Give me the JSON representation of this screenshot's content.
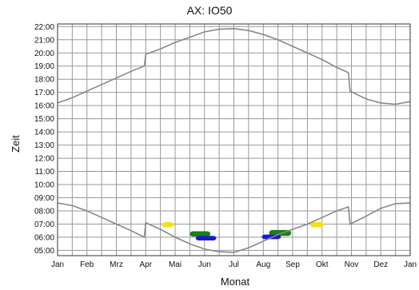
{
  "chart_data": {
    "type": "line",
    "title": "AX: IO50",
    "xlabel": "Monat",
    "ylabel": "Zeit",
    "x_tick_labels": [
      "Jan",
      "Feb",
      "Mrz",
      "Apr",
      "Mai",
      "Jun",
      "Jul",
      "Aug",
      "Sep",
      "Okt",
      "Nov",
      "Dez",
      "Jan"
    ],
    "y_tick_labels": [
      "05:00",
      "06:00",
      "07:00",
      "08:00",
      "09:00",
      "10:00",
      "11:00",
      "12:00",
      "13:00",
      "14:00",
      "15:00",
      "16:00",
      "17:00",
      "18:00",
      "19:00",
      "20:00",
      "21:00",
      "22:00"
    ],
    "xlim": [
      0,
      12
    ],
    "ylim": [
      4.6,
      22.2
    ],
    "grid": true,
    "colors": {
      "curve": "#888888",
      "grid": "#999999",
      "yellow": "#f0e020",
      "green": "#1a7f1a",
      "blue": "#1a1ad0"
    },
    "sunset": {
      "x": [
        0,
        0.5,
        1,
        1.5,
        2,
        2.5,
        2.95,
        3.0,
        3.5,
        4,
        4.5,
        5,
        5.5,
        6,
        6.5,
        7,
        7.5,
        8,
        8.5,
        9,
        9.5,
        9.9,
        9.95,
        10.5,
        11,
        11.5,
        12
      ],
      "y": [
        16.2,
        16.6,
        17.1,
        17.6,
        18.1,
        18.6,
        19.0,
        19.9,
        20.3,
        20.8,
        21.2,
        21.6,
        21.8,
        21.85,
        21.7,
        21.4,
        21.0,
        20.5,
        20.0,
        19.5,
        18.9,
        18.5,
        17.1,
        16.5,
        16.2,
        16.1,
        16.3
      ]
    },
    "sunrise": {
      "x": [
        0,
        0.5,
        1,
        1.5,
        2,
        2.5,
        2.95,
        3.0,
        3.5,
        4,
        4.5,
        5,
        5.5,
        6,
        6.5,
        7,
        7.5,
        8,
        8.5,
        9,
        9.5,
        9.9,
        9.95,
        10.5,
        11,
        11.5,
        12
      ],
      "y": [
        8.6,
        8.4,
        8.0,
        7.5,
        7.0,
        6.5,
        6.0,
        7.1,
        6.6,
        6.0,
        5.5,
        5.1,
        4.9,
        4.85,
        5.2,
        5.7,
        6.2,
        6.6,
        7.0,
        7.5,
        8.0,
        8.3,
        7.0,
        7.6,
        8.2,
        8.55,
        8.6
      ]
    },
    "marks": [
      {
        "color": "yellow",
        "x": [
          3.55,
          3.95
        ],
        "y": [
          6.75,
          7.15
        ]
      },
      {
        "color": "green",
        "x": [
          4.5,
          5.2
        ],
        "y": [
          6.05,
          6.45
        ]
      },
      {
        "color": "blue",
        "x": [
          4.7,
          5.4
        ],
        "y": [
          5.75,
          6.1
        ]
      },
      {
        "color": "green",
        "x": [
          7.2,
          7.95
        ],
        "y": [
          6.1,
          6.55
        ]
      },
      {
        "color": "blue",
        "x": [
          6.95,
          7.6
        ],
        "y": [
          5.85,
          6.2
        ]
      },
      {
        "color": "yellow",
        "x": [
          8.6,
          9.05
        ],
        "y": [
          6.75,
          7.15
        ]
      }
    ]
  }
}
